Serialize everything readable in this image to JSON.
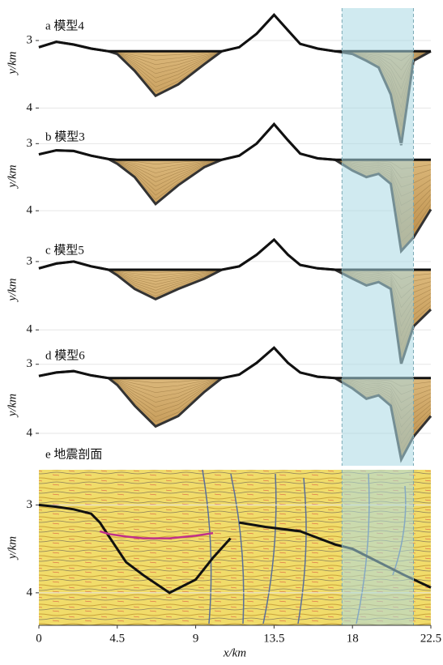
{
  "chart_data": [
    {
      "type": "profile",
      "label": "a 模型4",
      "ylabel": "y/km",
      "xlim": [
        0,
        22.5
      ],
      "ylim": [
        4.14,
        2.52
      ],
      "yticks": [
        3,
        4
      ],
      "grid": true,
      "fill": "#d9b06a",
      "highlight": [
        17.4,
        21.5
      ],
      "x": [
        0,
        1,
        2,
        3,
        4,
        4.5,
        5.5,
        6.7,
        8,
        9.5,
        10.5,
        11.5,
        12.5,
        13.5,
        14.3,
        15,
        16,
        17,
        18,
        18.8,
        19.5,
        20.2,
        20.8,
        21.5,
        22.5
      ],
      "series": [
        {
          "color": "#111111",
          "values": [
            3.1,
            3.02,
            3.06,
            3.12,
            3.16,
            3.16,
            3.16,
            3.16,
            3.16,
            3.16,
            3.16,
            3.1,
            2.9,
            2.62,
            2.85,
            3.05,
            3.12,
            3.16,
            3.16,
            3.16,
            3.16,
            3.16,
            3.16,
            3.16,
            3.16
          ]
        },
        {
          "color": "#333333",
          "values": [
            3.1,
            3.02,
            3.06,
            3.12,
            3.16,
            3.2,
            3.45,
            3.82,
            3.65,
            3.35,
            3.16,
            3.1,
            2.9,
            2.62,
            2.85,
            3.05,
            3.12,
            3.16,
            3.2,
            3.3,
            3.4,
            3.8,
            4.55,
            3.3,
            3.16
          ]
        }
      ]
    },
    {
      "type": "profile",
      "label": "b 模型3",
      "ylabel": "y/km",
      "xlim": [
        0,
        22.5
      ],
      "ylim": [
        4.36,
        2.61
      ],
      "yticks": [
        3,
        4
      ],
      "grid": true,
      "fill": "#d9b06a",
      "highlight": [
        17.4,
        21.5
      ],
      "x": [
        0,
        1,
        2,
        3,
        4,
        4.5,
        5.5,
        6.7,
        8,
        9.5,
        10.5,
        11.5,
        12.5,
        13.5,
        14.3,
        15,
        16,
        17,
        18,
        18.8,
        19.5,
        20.2,
        20.8,
        21.5,
        22.5
      ],
      "series": [
        {
          "color": "#111111",
          "values": [
            3.16,
            3.1,
            3.11,
            3.18,
            3.23,
            3.24,
            3.24,
            3.24,
            3.24,
            3.24,
            3.24,
            3.18,
            3.0,
            2.71,
            2.95,
            3.15,
            3.22,
            3.24,
            3.24,
            3.24,
            3.24,
            3.24,
            3.24,
            3.24,
            3.24
          ]
        },
        {
          "color": "#333333",
          "values": [
            3.16,
            3.1,
            3.11,
            3.18,
            3.23,
            3.3,
            3.5,
            3.9,
            3.62,
            3.35,
            3.24,
            3.18,
            3.0,
            2.71,
            2.95,
            3.15,
            3.22,
            3.24,
            3.4,
            3.5,
            3.45,
            3.6,
            4.6,
            4.4,
            3.98
          ]
        }
      ]
    },
    {
      "type": "profile",
      "label": "c 模型5",
      "ylabel": "y/km",
      "xlim": [
        0,
        22.5
      ],
      "ylim": [
        4.21,
        2.61
      ],
      "yticks": [
        3,
        4
      ],
      "grid": true,
      "fill": "#d9b06a",
      "highlight": [
        17.4,
        21.5
      ],
      "x": [
        0,
        1,
        2,
        3,
        4,
        4.5,
        5.5,
        6.7,
        8,
        9.5,
        10.5,
        11.5,
        12.5,
        13.5,
        14.3,
        15,
        16,
        17,
        18,
        18.8,
        19.5,
        20.2,
        20.8,
        21.5,
        22.5
      ],
      "series": [
        {
          "color": "#111111",
          "values": [
            3.1,
            3.03,
            3.0,
            3.07,
            3.12,
            3.12,
            3.12,
            3.12,
            3.12,
            3.12,
            3.12,
            3.07,
            2.9,
            2.68,
            2.9,
            3.05,
            3.1,
            3.12,
            3.12,
            3.12,
            3.12,
            3.12,
            3.12,
            3.12,
            3.12
          ]
        },
        {
          "color": "#333333",
          "values": [
            3.1,
            3.03,
            3.0,
            3.07,
            3.12,
            3.2,
            3.4,
            3.55,
            3.4,
            3.25,
            3.12,
            3.07,
            2.9,
            2.68,
            2.9,
            3.05,
            3.1,
            3.12,
            3.25,
            3.35,
            3.3,
            3.4,
            4.5,
            3.95,
            3.7
          ]
        }
      ]
    },
    {
      "type": "profile",
      "label": "d 模型6",
      "ylabel": "y/km",
      "xlim": [
        0,
        22.5
      ],
      "ylim": [
        4.47,
        2.71
      ],
      "yticks": [
        3,
        4
      ],
      "grid": true,
      "fill": "#d9b06a",
      "highlight": [
        17.4,
        21.5
      ],
      "x": [
        0,
        1,
        2,
        3,
        4,
        4.5,
        5.5,
        6.7,
        8,
        9.5,
        10.5,
        11.5,
        12.5,
        13.5,
        14.3,
        15,
        16,
        17,
        18,
        18.8,
        19.5,
        20.2,
        20.8,
        21.5,
        22.5
      ],
      "series": [
        {
          "color": "#111111",
          "values": [
            3.17,
            3.12,
            3.1,
            3.16,
            3.2,
            3.2,
            3.2,
            3.2,
            3.2,
            3.2,
            3.2,
            3.15,
            2.98,
            2.76,
            2.98,
            3.12,
            3.18,
            3.2,
            3.2,
            3.2,
            3.2,
            3.2,
            3.2,
            3.2,
            3.2
          ]
        },
        {
          "color": "#333333",
          "values": [
            3.17,
            3.12,
            3.1,
            3.16,
            3.2,
            3.3,
            3.6,
            3.9,
            3.75,
            3.4,
            3.2,
            3.15,
            2.98,
            2.76,
            2.98,
            3.12,
            3.18,
            3.2,
            3.35,
            3.5,
            3.45,
            3.6,
            4.38,
            4.05,
            3.75
          ]
        }
      ]
    },
    {
      "type": "seismic",
      "label": "e 地震剖面",
      "ylabel": "y/km",
      "xlabel": "x/km",
      "xlim": [
        0,
        22.5
      ],
      "ylim": [
        4.37,
        2.6
      ],
      "yticks": [
        3,
        4
      ],
      "xticks": [
        0,
        4.5,
        9,
        13.5,
        18,
        22.5
      ],
      "grid": true,
      "highlight": [
        17.4,
        21.5
      ],
      "x": [
        0,
        1,
        2,
        3,
        3.5,
        4,
        5,
        6,
        7.5,
        9,
        10,
        11,
        11.2,
        11.5,
        13,
        15,
        17,
        18,
        19,
        20,
        21,
        22.5
      ],
      "series": [
        {
          "color": "#111111",
          "values": [
            3.0,
            3.02,
            3.05,
            3.1,
            3.2,
            3.35,
            3.65,
            3.8,
            4.0,
            3.85,
            3.6,
            3.38,
            null,
            3.2,
            3.25,
            3.3,
            3.45,
            3.5,
            3.6,
            3.7,
            3.8,
            3.94
          ]
        },
        {
          "color": "#c0308a",
          "values": [
            null,
            null,
            null,
            null,
            3.3,
            3.33,
            3.36,
            3.38,
            3.38,
            3.35,
            3.32,
            null,
            null,
            null,
            null,
            null,
            null,
            null,
            null,
            null,
            null,
            null
          ]
        }
      ]
    }
  ]
}
